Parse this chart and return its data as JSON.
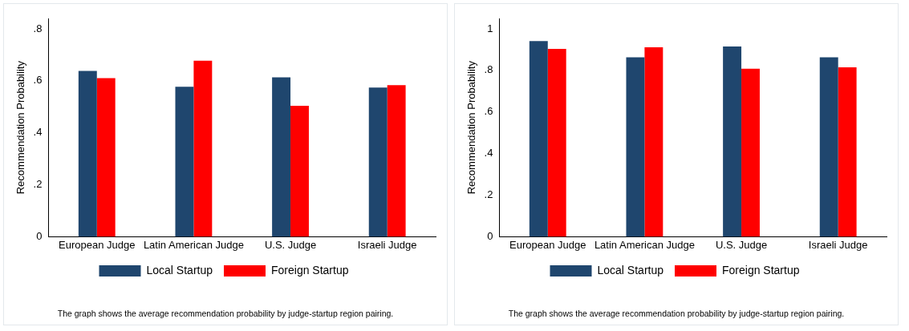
{
  "chart_data": [
    {
      "type": "bar",
      "ylabel": "Recommendation Probability",
      "categories": [
        "European Judge",
        "Latin American Judge",
        "U.S. Judge",
        "Israeli Judge"
      ],
      "series": [
        {
          "name": "Local Startup",
          "color": "#1f466e",
          "values": [
            0.638,
            0.577,
            0.613,
            0.574
          ]
        },
        {
          "name": "Foreign Startup",
          "color": "#ff0000",
          "values": [
            0.61,
            0.677,
            0.504,
            0.583
          ]
        }
      ],
      "ylim": [
        0,
        0.84
      ],
      "yticks": [
        {
          "value": 0,
          "label": "0"
        },
        {
          "value": 0.2,
          "label": ".2"
        },
        {
          "value": 0.4,
          "label": ".4"
        },
        {
          "value": 0.6,
          "label": ".6"
        },
        {
          "value": 0.8,
          "label": ".8"
        }
      ],
      "grid": false,
      "legend": "bottom",
      "annotations": [
        "The graph shows the average recommendation probability by judge-startup region pairing."
      ]
    },
    {
      "type": "bar",
      "ylabel": "Recommendation Probability",
      "categories": [
        "European Judge",
        "Latin American Judge",
        "U.S. Judge",
        "Israeli Judge"
      ],
      "series": [
        {
          "name": "Local Startup",
          "color": "#1f466e",
          "values": [
            0.941,
            0.863,
            0.915,
            0.863
          ]
        },
        {
          "name": "Foreign Startup",
          "color": "#ff0000",
          "values": [
            0.904,
            0.911,
            0.808,
            0.815
          ]
        }
      ],
      "ylim": [
        0,
        1.05
      ],
      "yticks": [
        {
          "value": 0,
          "label": "0"
        },
        {
          "value": 0.2,
          "label": ".2"
        },
        {
          "value": 0.4,
          "label": ".4"
        },
        {
          "value": 0.6,
          "label": ".6"
        },
        {
          "value": 0.8,
          "label": ".8"
        },
        {
          "value": 1,
          "label": "1"
        }
      ],
      "grid": false,
      "legend": "bottom",
      "annotations": [
        "The graph shows the average recommendation probability by judge-startup region pairing."
      ]
    }
  ]
}
